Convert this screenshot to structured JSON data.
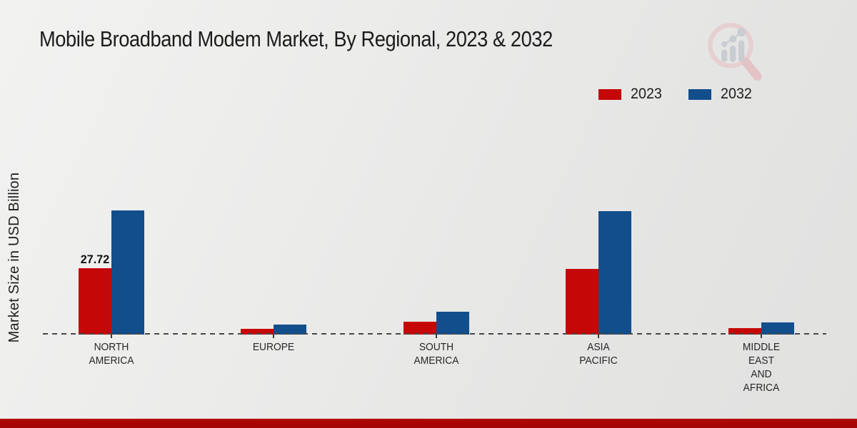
{
  "title": "Mobile Broadband Modem Market, By Regional, 2023 & 2032",
  "y_axis_label": "Market Size in USD Billion",
  "legend": [
    {
      "label": "2023",
      "color": "#c50707"
    },
    {
      "label": "2032",
      "color": "#124e8c"
    }
  ],
  "colors": {
    "series_2023": "#c50707",
    "series_2032": "#124e8c",
    "baseline_dash": "#474747",
    "footer_bar": "#b30505",
    "title_text": "#1b1b1b"
  },
  "logo": {
    "name": "market-research-magnifier-logo"
  },
  "chart_data": {
    "type": "bar",
    "title": "Mobile Broadband Modem Market, By Regional, 2023 & 2032",
    "xlabel": "",
    "ylabel": "Market Size in USD Billion",
    "categories": [
      "NORTH AMERICA",
      "EUROPE",
      "SOUTH AMERICA",
      "ASIA PACIFIC",
      "MIDDLE EAST AND AFRICA"
    ],
    "category_label_lines": [
      [
        "NORTH",
        "AMERICA"
      ],
      [
        "EUROPE"
      ],
      [
        "SOUTH",
        "AMERICA"
      ],
      [
        "ASIA",
        "PACIFIC"
      ],
      [
        "MIDDLE",
        "EAST",
        "AND",
        "AFRICA"
      ]
    ],
    "series": [
      {
        "name": "2023",
        "color": "#c50707",
        "values": [
          27.72,
          2.4,
          5.4,
          27.4,
          2.7
        ]
      },
      {
        "name": "2032",
        "color": "#124e8c",
        "values": [
          51.9,
          4.2,
          9.5,
          51.6,
          5.1
        ]
      }
    ],
    "annotations": [
      {
        "category": "NORTH AMERICA",
        "series": "2023",
        "text": "27.72"
      }
    ],
    "ylim": [
      0,
      55
    ],
    "grid": false,
    "baseline_style": "dashed",
    "legend_position": "top-right"
  }
}
